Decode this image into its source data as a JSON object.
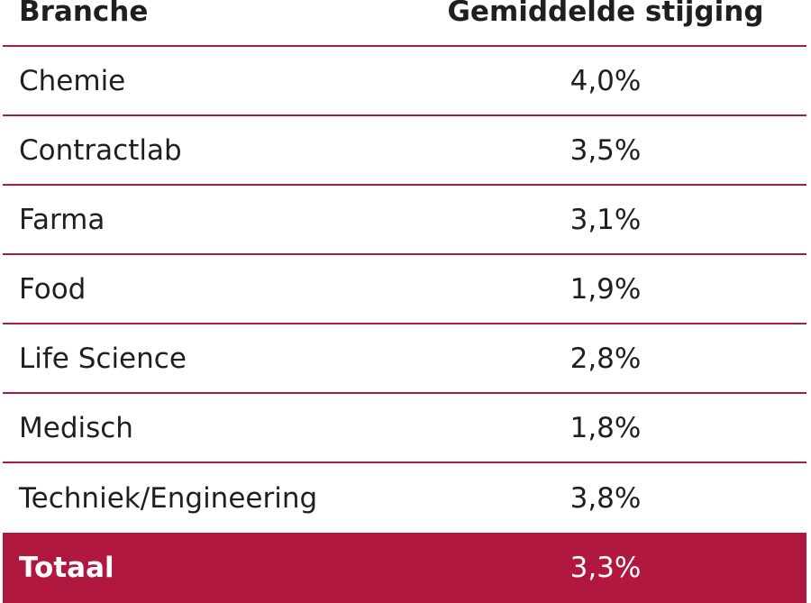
{
  "table": {
    "headers": {
      "branche": "Branche",
      "value": "Gemiddelde stijging"
    },
    "rows": [
      {
        "branche": "Chemie",
        "value": "4,0%"
      },
      {
        "branche": "Contractlab",
        "value": "3,5%"
      },
      {
        "branche": "Farma",
        "value": "3,1%"
      },
      {
        "branche": "Food",
        "value": "1,9%"
      },
      {
        "branche": "Life Science",
        "value": "2,8%"
      },
      {
        "branche": "Medisch",
        "value": "1,8%"
      },
      {
        "branche": "Techniek/Engineering",
        "value": "3,8%"
      }
    ],
    "total": {
      "branche": "Totaal",
      "value": "3,3%"
    }
  },
  "colors": {
    "accent": "#b0183f",
    "divider": "#a61c45",
    "text": "#1f1f1f"
  }
}
